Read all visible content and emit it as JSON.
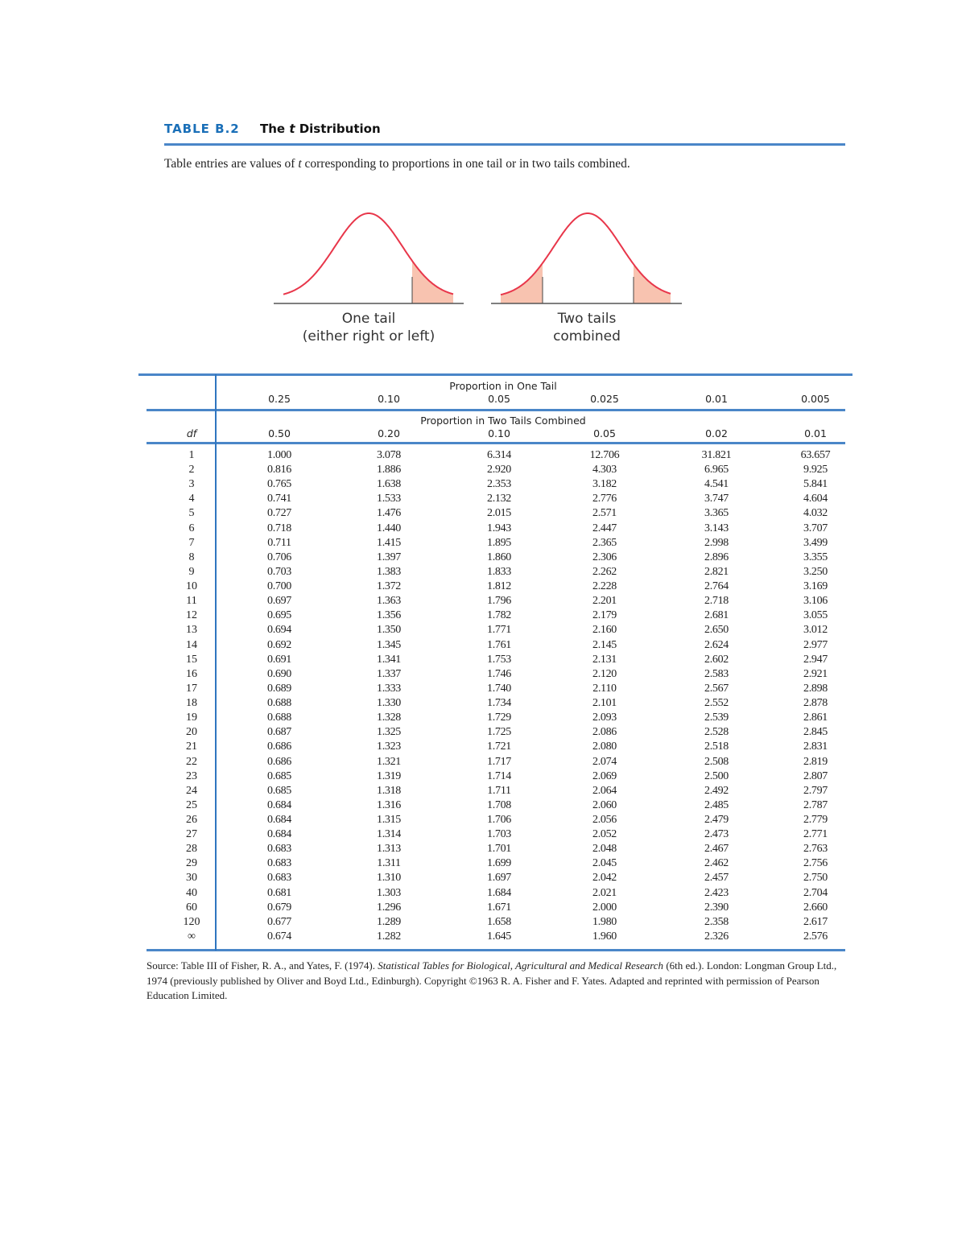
{
  "header": {
    "label": "TABLE B.2",
    "title_prefix": "The ",
    "title_italic": "t",
    "title_suffix": " Distribution"
  },
  "intro": {
    "prefix": "Table entries are values of ",
    "italic": "t",
    "suffix": " corresponding to proportions in one tail or in two tails combined."
  },
  "figures": {
    "one_tail": {
      "line1": "One tail",
      "line2": "(either right or left)"
    },
    "two_tails": {
      "line1": "Two tails",
      "line2": "combined"
    },
    "curve_color": "#e8364a",
    "shade_color": "#f8c3b0"
  },
  "table": {
    "one_tail_title": "Proportion in One Tail",
    "one_tail_cols": [
      "0.25",
      "0.10",
      "0.05",
      "0.025",
      "0.01",
      "0.005"
    ],
    "two_tail_title": "Proportion in Two Tails Combined",
    "two_tail_cols": [
      "0.50",
      "0.20",
      "0.10",
      "0.05",
      "0.02",
      "0.01"
    ],
    "df_label": "df",
    "rows": [
      [
        "1",
        "1.000",
        "3.078",
        "6.314",
        "12.706",
        "31.821",
        "63.657"
      ],
      [
        "2",
        "0.816",
        "1.886",
        "2.920",
        "4.303",
        "6.965",
        "9.925"
      ],
      [
        "3",
        "0.765",
        "1.638",
        "2.353",
        "3.182",
        "4.541",
        "5.841"
      ],
      [
        "4",
        "0.741",
        "1.533",
        "2.132",
        "2.776",
        "3.747",
        "4.604"
      ],
      [
        "5",
        "0.727",
        "1.476",
        "2.015",
        "2.571",
        "3.365",
        "4.032"
      ],
      [
        "6",
        "0.718",
        "1.440",
        "1.943",
        "2.447",
        "3.143",
        "3.707"
      ],
      [
        "7",
        "0.711",
        "1.415",
        "1.895",
        "2.365",
        "2.998",
        "3.499"
      ],
      [
        "8",
        "0.706",
        "1.397",
        "1.860",
        "2.306",
        "2.896",
        "3.355"
      ],
      [
        "9",
        "0.703",
        "1.383",
        "1.833",
        "2.262",
        "2.821",
        "3.250"
      ],
      [
        "10",
        "0.700",
        "1.372",
        "1.812",
        "2.228",
        "2.764",
        "3.169"
      ],
      [
        "11",
        "0.697",
        "1.363",
        "1.796",
        "2.201",
        "2.718",
        "3.106"
      ],
      [
        "12",
        "0.695",
        "1.356",
        "1.782",
        "2.179",
        "2.681",
        "3.055"
      ],
      [
        "13",
        "0.694",
        "1.350",
        "1.771",
        "2.160",
        "2.650",
        "3.012"
      ],
      [
        "14",
        "0.692",
        "1.345",
        "1.761",
        "2.145",
        "2.624",
        "2.977"
      ],
      [
        "15",
        "0.691",
        "1.341",
        "1.753",
        "2.131",
        "2.602",
        "2.947"
      ],
      [
        "16",
        "0.690",
        "1.337",
        "1.746",
        "2.120",
        "2.583",
        "2.921"
      ],
      [
        "17",
        "0.689",
        "1.333",
        "1.740",
        "2.110",
        "2.567",
        "2.898"
      ],
      [
        "18",
        "0.688",
        "1.330",
        "1.734",
        "2.101",
        "2.552",
        "2.878"
      ],
      [
        "19",
        "0.688",
        "1.328",
        "1.729",
        "2.093",
        "2.539",
        "2.861"
      ],
      [
        "20",
        "0.687",
        "1.325",
        "1.725",
        "2.086",
        "2.528",
        "2.845"
      ],
      [
        "21",
        "0.686",
        "1.323",
        "1.721",
        "2.080",
        "2.518",
        "2.831"
      ],
      [
        "22",
        "0.686",
        "1.321",
        "1.717",
        "2.074",
        "2.508",
        "2.819"
      ],
      [
        "23",
        "0.685",
        "1.319",
        "1.714",
        "2.069",
        "2.500",
        "2.807"
      ],
      [
        "24",
        "0.685",
        "1.318",
        "1.711",
        "2.064",
        "2.492",
        "2.797"
      ],
      [
        "25",
        "0.684",
        "1.316",
        "1.708",
        "2.060",
        "2.485",
        "2.787"
      ],
      [
        "26",
        "0.684",
        "1.315",
        "1.706",
        "2.056",
        "2.479",
        "2.779"
      ],
      [
        "27",
        "0.684",
        "1.314",
        "1.703",
        "2.052",
        "2.473",
        "2.771"
      ],
      [
        "28",
        "0.683",
        "1.313",
        "1.701",
        "2.048",
        "2.467",
        "2.763"
      ],
      [
        "29",
        "0.683",
        "1.311",
        "1.699",
        "2.045",
        "2.462",
        "2.756"
      ],
      [
        "30",
        "0.683",
        "1.310",
        "1.697",
        "2.042",
        "2.457",
        "2.750"
      ],
      [
        "40",
        "0.681",
        "1.303",
        "1.684",
        "2.021",
        "2.423",
        "2.704"
      ],
      [
        "60",
        "0.679",
        "1.296",
        "1.671",
        "2.000",
        "2.390",
        "2.660"
      ],
      [
        "120",
        "0.677",
        "1.289",
        "1.658",
        "1.980",
        "2.358",
        "2.617"
      ],
      [
        "∞",
        "0.674",
        "1.282",
        "1.645",
        "1.960",
        "2.326",
        "2.576"
      ]
    ]
  },
  "source": {
    "prefix": "Source: Table III of Fisher, R. A., and Yates, F. (1974). ",
    "italic": "Statistical Tables for Biological, Agricultural and Medical Research",
    "suffix": " (6th ed.). London: Longman Group Ltd., 1974 (previously published by Oliver and Boyd Ltd., Edinburgh). Copyright ©1963 R. A. Fisher and F. Yates. Adapted and reprinted with permission of Pearson Education Limited."
  }
}
